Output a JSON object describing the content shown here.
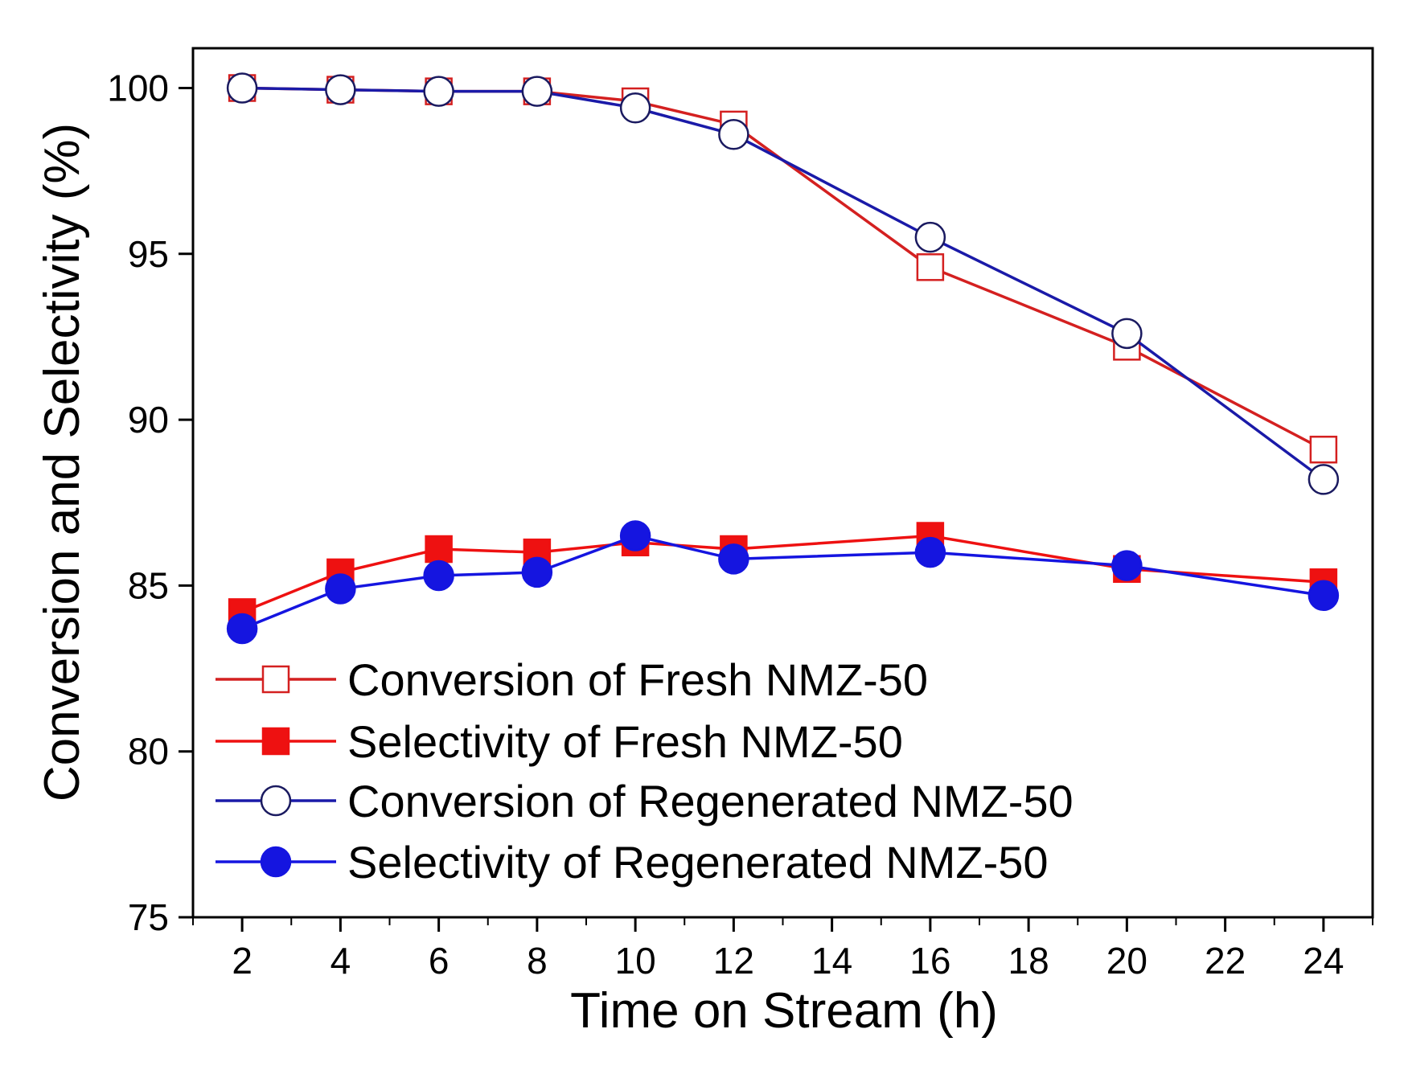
{
  "chart_data": {
    "type": "line",
    "xlabel": "Time on Stream (h)",
    "ylabel": "Conversion and Selectivity (%)",
    "xlim": [
      1,
      25
    ],
    "ylim": [
      75,
      101.2
    ],
    "x_ticks": [
      2,
      4,
      6,
      8,
      10,
      12,
      14,
      16,
      18,
      20,
      22,
      24
    ],
    "y_ticks": [
      75,
      80,
      85,
      90,
      95,
      100
    ],
    "x_tick_labels": [
      "2",
      "4",
      "6",
      "8",
      "10",
      "12",
      "14",
      "16",
      "18",
      "20",
      "22",
      "24"
    ],
    "y_tick_labels": [
      "75",
      "80",
      "85",
      "90",
      "95",
      "100"
    ],
    "x": [
      2,
      4,
      6,
      8,
      10,
      12,
      16,
      20,
      24
    ],
    "legend_position": "lower-left",
    "series": [
      {
        "name": "Conversion of Fresh NMZ-50",
        "color": "#d42020",
        "marker": "square-open",
        "values": [
          100.0,
          99.95,
          99.9,
          99.9,
          99.6,
          98.9,
          94.6,
          92.2,
          89.1
        ]
      },
      {
        "name": "Selectivity of Fresh NMZ-50",
        "color": "#ee1111",
        "marker": "square-filled",
        "values": [
          84.2,
          85.4,
          86.1,
          86.0,
          86.3,
          86.1,
          86.5,
          85.5,
          85.1
        ]
      },
      {
        "name": "Conversion of Regenerated NMZ-50",
        "color": "#1a1aa8",
        "marker": "circle-open",
        "values": [
          100.0,
          99.95,
          99.9,
          99.9,
          99.4,
          98.6,
          95.5,
          92.6,
          88.2
        ]
      },
      {
        "name": "Selectivity of Regenerated NMZ-50",
        "color": "#1515e0",
        "marker": "circle-filled",
        "values": [
          83.7,
          84.9,
          85.3,
          85.4,
          86.5,
          85.8,
          86.0,
          85.6,
          84.7
        ]
      }
    ]
  }
}
